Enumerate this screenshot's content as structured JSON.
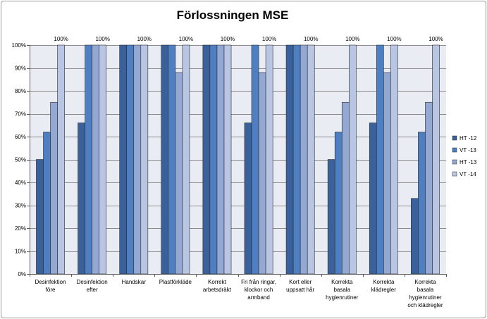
{
  "chart_data": {
    "type": "bar",
    "title": "Förlossningen MSE",
    "xlabel": "",
    "ylabel": "",
    "ylim": [
      0,
      100
    ],
    "y_ticks": [
      "0%",
      "10%",
      "20%",
      "30%",
      "40%",
      "50%",
      "60%",
      "70%",
      "80%",
      "90%",
      "100%"
    ],
    "grid": true,
    "legend_position": "right",
    "categories": [
      [
        "Desinfektion",
        "före"
      ],
      [
        "Desinfektion",
        "efter"
      ],
      [
        "Handskar"
      ],
      [
        "Plastförkläde"
      ],
      [
        "Korrekt",
        "arbetsdräkt"
      ],
      [
        "Fri från ringar,",
        "klockor och",
        "armband"
      ],
      [
        "Kort eller",
        "uppsatt hår"
      ],
      [
        "Korrekta",
        "basala",
        "hygienrutiner"
      ],
      [
        "Korrekta",
        "klädregler"
      ],
      [
        "Korrekta",
        "basala",
        "hygienrutiner",
        "och klädregler"
      ]
    ],
    "series": [
      {
        "name": "HT -12",
        "color": "#3a619b",
        "values": [
          50,
          66,
          100,
          100,
          100,
          66,
          100,
          50,
          66,
          33
        ]
      },
      {
        "name": "VT -13",
        "color": "#4f7fc3",
        "values": [
          62,
          100,
          100,
          100,
          100,
          100,
          100,
          62,
          100,
          62
        ]
      },
      {
        "name": "HT -13",
        "color": "#93a8d3",
        "values": [
          75,
          100,
          100,
          88,
          100,
          88,
          100,
          75,
          88,
          75
        ]
      },
      {
        "name": "VT -14",
        "color": "#b9c6e3",
        "values": [
          100,
          100,
          100,
          100,
          100,
          100,
          100,
          100,
          100,
          100
        ]
      }
    ],
    "data_labels": [
      "100%",
      "100%",
      "100%",
      "100%",
      "100%",
      "100%",
      "100%",
      "100%",
      "100%",
      "100%"
    ]
  }
}
